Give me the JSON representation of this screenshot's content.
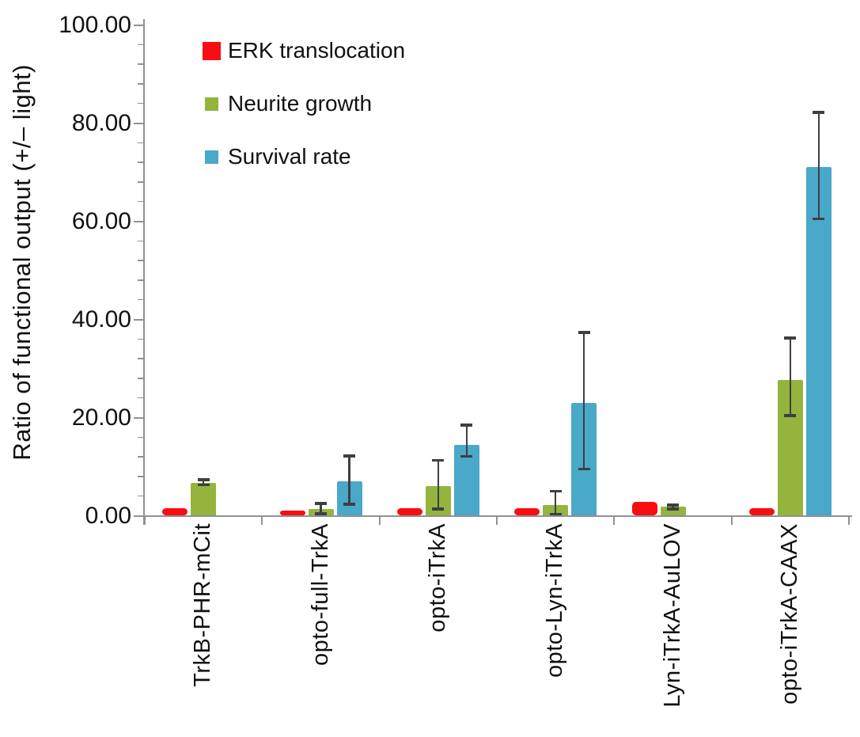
{
  "figure": {
    "background": "#ffffff",
    "axis_color": "#8f9295",
    "error_bar_color": "#3d4042",
    "text_color": "#111111"
  },
  "axes": {
    "y_title": "Ratio of functional output (+/– light)"
  },
  "chart_data": {
    "type": "bar",
    "title": "",
    "xlabel": "",
    "ylabel": "Ratio of functional output (+/– light)",
    "ylim": [
      0,
      100
    ],
    "ytick_values": [
      100,
      80,
      60,
      40,
      20,
      0
    ],
    "ytick_labels": [
      "100.00",
      "80.00",
      "60.00",
      "40.00",
      "20.00",
      "0.00"
    ],
    "minor_tick_step": 4,
    "grid": false,
    "legend_position": "upper-left-inside",
    "categories": [
      "TrkB-PHR-mCit",
      "opto-full-TrkA",
      "opto-iTrkA",
      "opto-Lyn-iTrkA",
      "Lyn-iTrkA-AuLOV",
      "opto-iTrkA-CAAX"
    ],
    "series": [
      {
        "name": "ERK translocation",
        "color": "#f80e12",
        "values": [
          1.5,
          1.1,
          1.5,
          1.5,
          2.9,
          1.5
        ],
        "err_low": [
          null,
          null,
          null,
          null,
          null,
          null
        ],
        "err_high": [
          null,
          null,
          null,
          null,
          null,
          null
        ]
      },
      {
        "name": "Neurite growth",
        "color": "#95b43e",
        "values": [
          6.7,
          1.4,
          6.0,
          2.2,
          1.8,
          27.7
        ],
        "err_low": [
          6.3,
          0.4,
          1.4,
          0.3,
          1.4,
          20.4
        ],
        "err_high": [
          7.3,
          2.5,
          11.3,
          5.0,
          2.2,
          36.2
        ]
      },
      {
        "name": "Survival rate",
        "color": "#4aa8c9",
        "values": [
          null,
          7.0,
          14.5,
          23.0,
          null,
          71.0
        ],
        "err_low": [
          null,
          2.3,
          12.1,
          9.5,
          null,
          60.5
        ],
        "err_high": [
          null,
          12.2,
          18.5,
          37.3,
          null,
          82.2
        ]
      }
    ]
  }
}
